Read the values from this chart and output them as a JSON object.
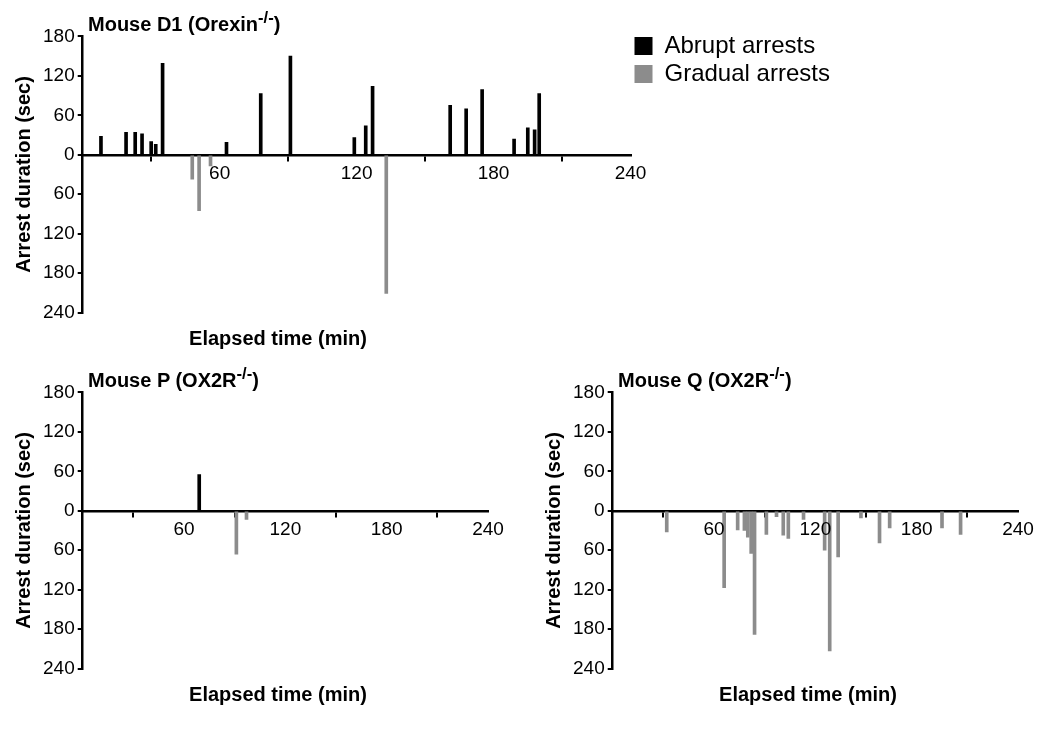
{
  "chart_data": [
    {
      "type": "bar",
      "title": "Mouse D1 (Orexin$^{-/-}$)",
      "xlabel": "Elapsed time (min)",
      "ylabel": "Arrest duration (sec)",
      "xlim": [
        0,
        240
      ],
      "xticks": [
        60,
        120,
        180,
        240
      ],
      "ylim": [
        -240,
        180
      ],
      "yticks": [
        180,
        120,
        60,
        0,
        {
          "value": -60,
          "label": "60"
        },
        {
          "value": -120,
          "label": "120"
        },
        {
          "value": -180,
          "label": "180"
        },
        {
          "value": -240,
          "label": "240"
        }
      ],
      "legend": "right",
      "series": [
        {
          "name": "Abrupt arrests",
          "color": "#000000",
          "x": [
            8,
            19,
            23,
            26,
            30,
            32,
            35,
            63,
            78,
            91,
            119,
            124,
            127,
            161,
            168,
            175,
            189,
            195,
            198,
            200
          ],
          "values": [
            28,
            34,
            34,
            32,
            20,
            16,
            139,
            19,
            93,
            150,
            26,
            44,
            104,
            75,
            70,
            99,
            24,
            41,
            38,
            93
          ]
        },
        {
          "name": "Gradual arrests",
          "color": "#8c8c8c",
          "x": [
            48,
            51,
            56,
            133
          ],
          "values": [
            -37,
            -85,
            -17,
            -211
          ]
        }
      ]
    },
    {
      "type": "bar",
      "title": "Mouse P (OX2R$^{-/-}$)",
      "xlabel": "Elapsed time (min)",
      "ylabel": "Arrest duration (sec)",
      "xlim": [
        0,
        240
      ],
      "xticks": [
        60,
        120,
        180,
        240
      ],
      "ylim": [
        -240,
        180
      ],
      "yticks": [
        180,
        120,
        60,
        0,
        {
          "value": -60,
          "label": "60"
        },
        {
          "value": -120,
          "label": "120"
        },
        {
          "value": -180,
          "label": "180"
        },
        {
          "value": -240,
          "label": "240"
        }
      ],
      "series": [
        {
          "color": "#000000",
          "x": [
            69
          ],
          "values": [
            55
          ]
        },
        {
          "color": "#8c8c8c",
          "x": [
            91,
            97
          ],
          "values": [
            -66,
            -13
          ]
        }
      ]
    },
    {
      "type": "bar",
      "title": "Mouse Q (OX2R$^{-/-}$)",
      "xlabel": "Elapsed time (min)",
      "ylabel": "Arrest duration (sec)",
      "xlim": [
        0,
        240
      ],
      "xticks": [
        60,
        120,
        180,
        240
      ],
      "ylim": [
        -240,
        180
      ],
      "yticks": [
        180,
        120,
        60,
        0,
        {
          "value": -60,
          "label": "60"
        },
        {
          "value": -120,
          "label": "120"
        },
        {
          "value": -180,
          "label": "180"
        },
        {
          "value": -240,
          "label": "240"
        }
      ],
      "series": [
        {
          "color": "#8c8c8c",
          "x": [
            32,
            66,
            74,
            78,
            80,
            82,
            84,
            91,
            97,
            101,
            104,
            113,
            125.5,
            128.5,
            133.5,
            147,
            158,
            164,
            195,
            206
          ],
          "values": [
            -32,
            -117,
            -29,
            -30,
            -40,
            -65,
            -188,
            -36,
            -9,
            -37,
            -42,
            -13,
            -60,
            -213,
            -70,
            -11,
            -49,
            -26,
            -26,
            -36
          ]
        }
      ]
    }
  ]
}
